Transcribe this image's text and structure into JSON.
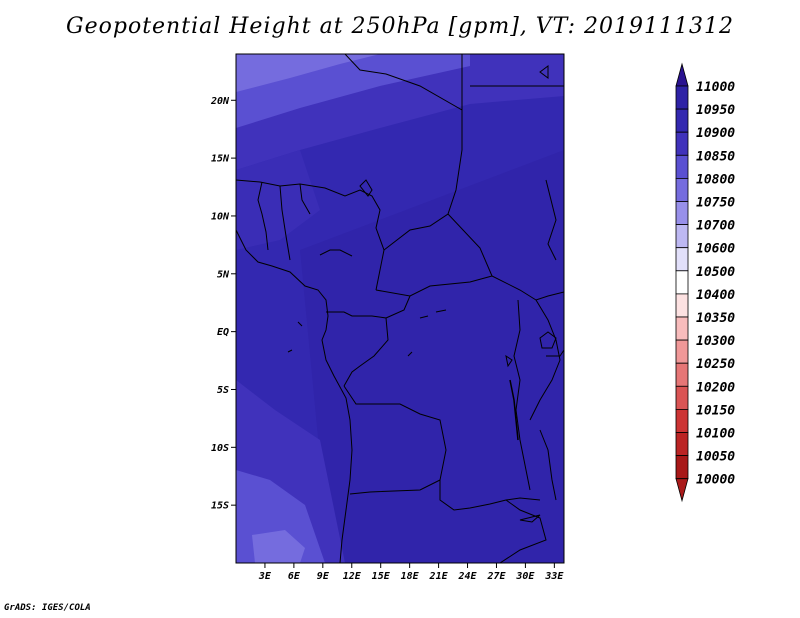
{
  "title": "Geopotential Height at 250hPa [gpm], VT: 2019111312",
  "footer": "GrADS: IGES/COLA",
  "map": {
    "lon_range": [
      0,
      34
    ],
    "lat_range": [
      -20,
      24
    ],
    "lat_ticks": [
      {
        "lat": 20,
        "label": "20N"
      },
      {
        "lat": 15,
        "label": "15N"
      },
      {
        "lat": 10,
        "label": "10N"
      },
      {
        "lat": 5,
        "label": "5N"
      },
      {
        "lat": 0,
        "label": "EQ"
      },
      {
        "lat": -5,
        "label": "5S"
      },
      {
        "lat": -10,
        "label": "10S"
      },
      {
        "lat": -15,
        "label": "15S"
      }
    ],
    "lon_ticks": [
      {
        "lon": 3,
        "label": "3E"
      },
      {
        "lon": 6,
        "label": "6E"
      },
      {
        "lon": 9,
        "label": "9E"
      },
      {
        "lon": 12,
        "label": "12E"
      },
      {
        "lon": 15,
        "label": "15E"
      },
      {
        "lon": 18,
        "label": "18E"
      },
      {
        "lon": 21,
        "label": "21E"
      },
      {
        "lon": 24,
        "label": "24E"
      },
      {
        "lon": 27,
        "label": "27E"
      },
      {
        "lon": 30,
        "label": "30E"
      },
      {
        "lon": 33,
        "label": "33E"
      }
    ]
  },
  "colorbar": {
    "levels": [
      {
        "label": "11000",
        "color": "#2a1a98"
      },
      {
        "label": "10950",
        "color": "#2e22a6"
      },
      {
        "label": "10900",
        "color": "#3328b0"
      },
      {
        "label": "10850",
        "color": "#4032bb"
      },
      {
        "label": "10800",
        "color": "#5a50d2"
      },
      {
        "label": "10750",
        "color": "#756cde"
      },
      {
        "label": "10700",
        "color": "#9890ea"
      },
      {
        "label": "10600",
        "color": "#bdb8f2"
      },
      {
        "label": "10500",
        "color": "#e2e0fa"
      },
      {
        "label": "10400",
        "color": "#ffffff"
      },
      {
        "label": "10350",
        "color": "#fde2e2"
      },
      {
        "label": "10300",
        "color": "#f8bcbc"
      },
      {
        "label": "10250",
        "color": "#f09898"
      },
      {
        "label": "10200",
        "color": "#e67676"
      },
      {
        "label": "10150",
        "color": "#da5454"
      },
      {
        "label": "10100",
        "color": "#cc3434"
      },
      {
        "label": "10050",
        "color": "#bb2424"
      },
      {
        "label": "10000",
        "color": "#a81818"
      }
    ],
    "top_extend_color": "#2a1290",
    "bottom_extend_color": "#aa1a1a"
  }
}
